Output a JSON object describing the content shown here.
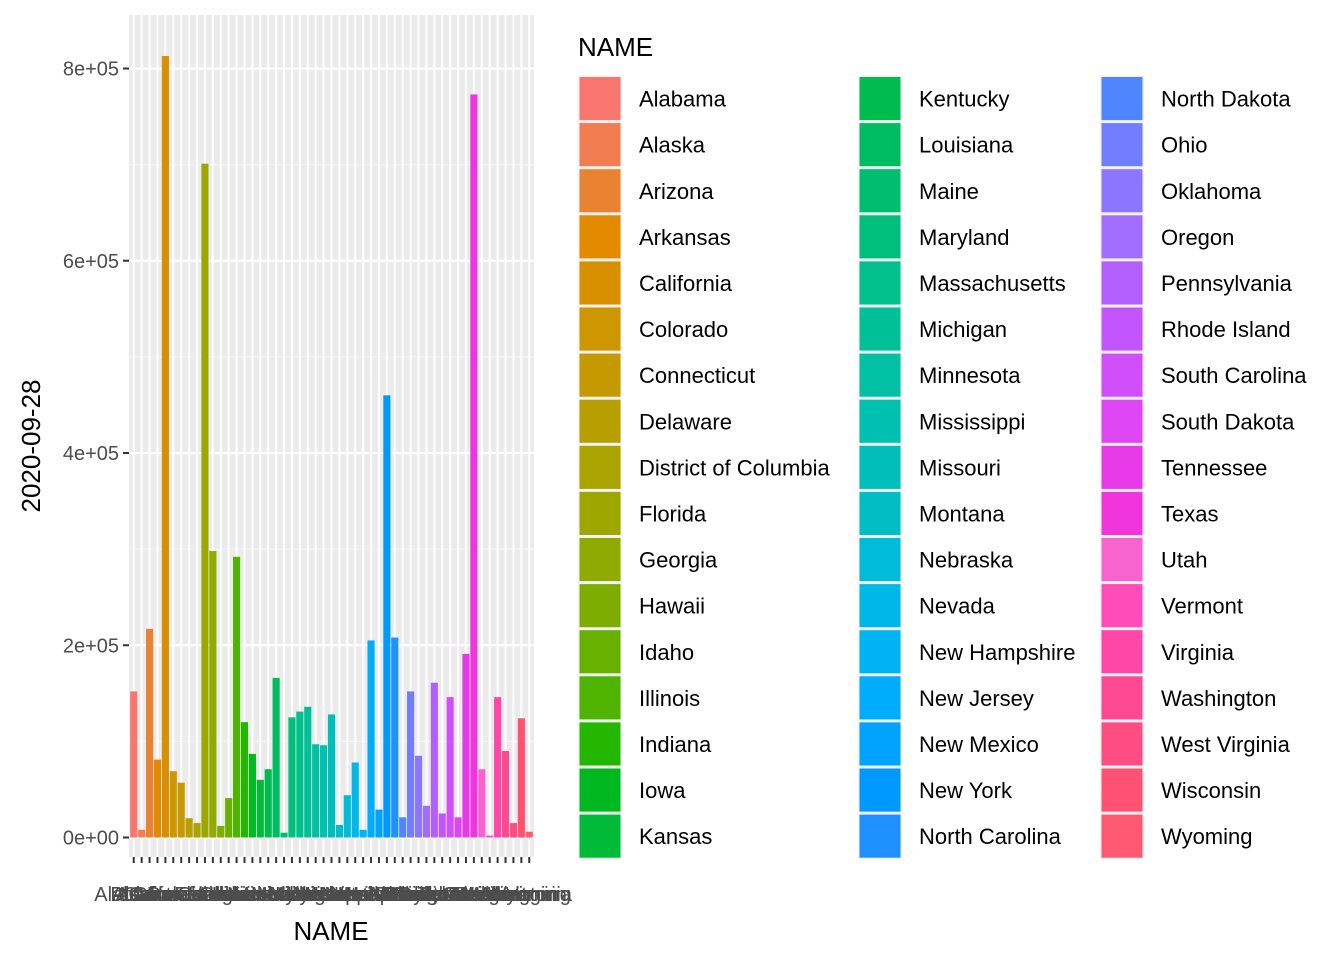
{
  "chart_data": {
    "type": "bar",
    "xlabel": "NAME",
    "ylabel": "2020-09-28",
    "legend_title": "NAME",
    "legend_position": "right",
    "grid": true,
    "ylim": [
      -20000,
      855000
    ],
    "y_ticks": [
      0,
      200000,
      400000,
      600000,
      800000
    ],
    "y_tick_labels": [
      "0e+00",
      "2e+05",
      "4e+05",
      "6e+05",
      "8e+05"
    ],
    "categories": [
      "Alabama",
      "Alaska",
      "Arizona",
      "Arkansas",
      "California",
      "Colorado",
      "Connecticut",
      "Delaware",
      "District of Columbia",
      "Florida",
      "Georgia",
      "Hawaii",
      "Idaho",
      "Illinois",
      "Indiana",
      "Iowa",
      "Kansas",
      "Kentucky",
      "Louisiana",
      "Maine",
      "Maryland",
      "Massachusetts",
      "Michigan",
      "Minnesota",
      "Mississippi",
      "Missouri",
      "Montana",
      "Nebraska",
      "Nevada",
      "New Hampshire",
      "New Jersey",
      "New Mexico",
      "New York",
      "North Carolina",
      "North Dakota",
      "Ohio",
      "Oklahoma",
      "Oregon",
      "Pennsylvania",
      "Rhode Island",
      "South Carolina",
      "South Dakota",
      "Tennessee",
      "Texas",
      "Utah",
      "Vermont",
      "Virginia",
      "Washington",
      "West Virginia",
      "Wisconsin",
      "Wyoming"
    ],
    "values": [
      152000,
      8000,
      217000,
      81000,
      813000,
      69000,
      57000,
      20000,
      15000,
      701000,
      298000,
      12000,
      41000,
      292000,
      120000,
      87000,
      60000,
      71000,
      166000,
      5000,
      125000,
      131000,
      136000,
      97000,
      96000,
      128000,
      13000,
      44000,
      78000,
      8000,
      205000,
      29000,
      460000,
      208000,
      21000,
      152000,
      85000,
      33000,
      161000,
      25000,
      146000,
      21000,
      191000,
      773000,
      71000,
      2000,
      146000,
      90000,
      15000,
      124000,
      6000
    ],
    "colors": [
      "#F8766D",
      "#F17D51",
      "#EA8331",
      "#E28A00",
      "#D89000",
      "#CE9600",
      "#C49A00",
      "#B89F00",
      "#ABA300",
      "#9EA700",
      "#8FAA00",
      "#7DAD00",
      "#68B100",
      "#4EB400",
      "#24B700",
      "#00B81F",
      "#00BA38",
      "#00BB4E",
      "#00BC61",
      "#00BE70",
      "#00BF7D",
      "#00C08B",
      "#00C098",
      "#00C1A3",
      "#00C0AF",
      "#00BFBA",
      "#00BEC4",
      "#00BCD8",
      "#00B8E7",
      "#00B3F4",
      "#00ACFC",
      "#00A3FF",
      "#0099FF",
      "#1E90FF",
      "#4F86FF",
      "#707EFF",
      "#8C76FF",
      "#9F6EFF",
      "#B160FF",
      "#C355FF",
      "#D04FFB",
      "#DE46F3",
      "#E839E8",
      "#F135DD",
      "#F764CD",
      "#FF4CB8",
      "#FF47A7",
      "#FF4892",
      "#FF4C82",
      "#FF5173",
      "#FF5873"
    ]
  }
}
